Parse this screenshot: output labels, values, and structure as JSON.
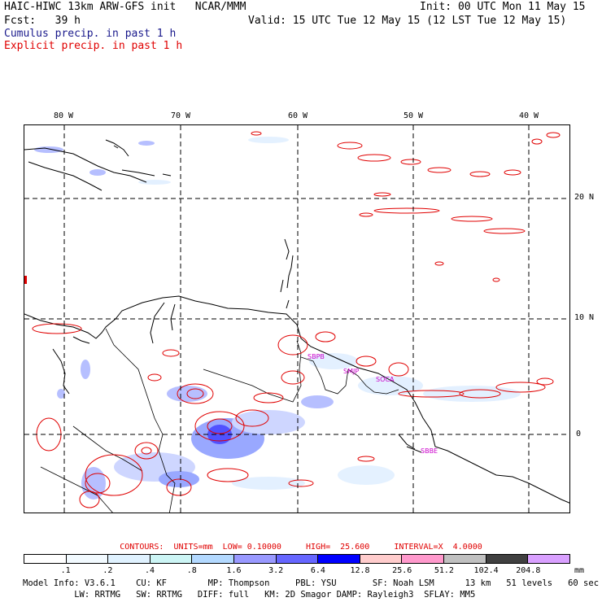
{
  "header": {
    "model_title": "HAIC-HIWC 13km ARW-GFS init   NCAR/MMM",
    "init": "Init: 00 UTC Mon 11 May 15",
    "forecast": "Fcst:   39 h",
    "valid": "Valid: 15 UTC Tue 12 May 15 (12 LST Tue 12 May 15)",
    "cumulus_label": "Cumulus precip. in past 1 h",
    "explicit_label": "Explicit precip. in past 1 h"
  },
  "map": {
    "lon_labels": [
      "80 W",
      "70 W",
      "60 W",
      "50 W",
      "40 W"
    ],
    "lat_labels": [
      "20 N",
      "10 N",
      "0"
    ],
    "station_labels": [
      "SBPB",
      "SMJP",
      "SOCA",
      "SBBE"
    ],
    "colors": {
      "cumulus": "#3333ff",
      "explicit": "#e00000",
      "land": "#000000",
      "label": "#cc00cc"
    }
  },
  "contours": {
    "line": "CONTOURS:  UNITS=mm  LOW= 0.10000     HIGH=  25.600     INTERVAL=X  4.0000"
  },
  "colorbar": {
    "ticks": [
      ".1",
      ".2",
      ".4",
      ".8",
      "1.6",
      "3.2",
      "6.4",
      "12.8",
      "25.6",
      "51.2",
      "102.4",
      "204.8"
    ],
    "units": "mm",
    "colors": [
      "#ffffff",
      "#f2faff",
      "#e0f2ff",
      "#ccf5f5",
      "#b3d9ff",
      "#9999ff",
      "#6666ff",
      "#0000ff",
      "#ffcccc",
      "#ff99cc",
      "#c0c0c0",
      "#404040",
      "#d9a0ff"
    ]
  },
  "info": {
    "line1": "Model Info: V3.6.1    CU: KF        MP: Thompson     PBL: YSU       SF: Noah LSM      13 km   51 levels   60 sec",
    "line2": "          LW: RRTMG   SW: RRTMG   DIFF: full   KM: 2D Smagor DAMP: Rayleigh3  SFLAY: MM5"
  }
}
